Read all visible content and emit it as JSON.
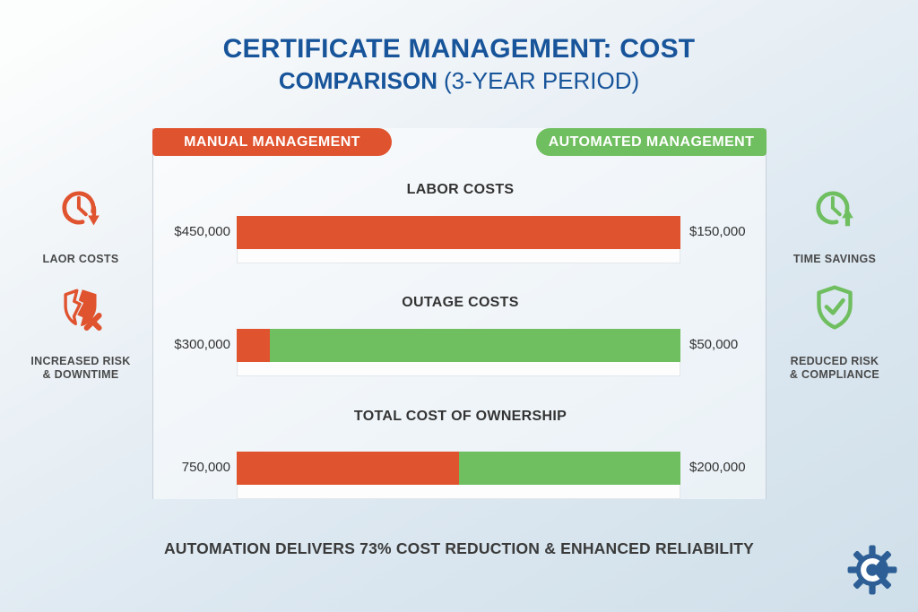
{
  "title": {
    "line1": "CERTIFICATE MANAGEMENT: COST",
    "line2_strong": "COMPARISON",
    "line2_light": "(3-YEAR PERIOD)"
  },
  "badges": {
    "manual": "MANUAL MANAGEMENT",
    "automated": "AUTOMATED MANAGEMENT"
  },
  "chart_data": {
    "type": "bar",
    "title": "Certificate Management: Cost Comparison (3-Year Period)",
    "categories": [
      "LABOR COSTS",
      "OUTAGE COSTS",
      "TOTAL COST OF OWNERSHIP"
    ],
    "series": [
      {
        "name": "Manual Management",
        "values": [
          450000,
          300000,
          750000
        ],
        "color": "#E0532F"
      },
      {
        "name": "Automated Management",
        "values": [
          150000,
          50000,
          200000
        ],
        "color": "#6FBE5F"
      }
    ],
    "value_labels_left": [
      "$450,000",
      "$300,000",
      "750,000"
    ],
    "value_labels_right": [
      "$150,000",
      "$50,000",
      "$200,000"
    ],
    "legend_position": "top",
    "grid": false,
    "annotation": "AUTOMATION DELIVERS 73% COST REDUCTION & ENHANCED RELIABILITY"
  },
  "rows": [
    {
      "title": "LABOR COSTS",
      "left_label": "$450,000",
      "right_label": "$150,000",
      "red_pct": 100,
      "green_pct": 0
    },
    {
      "title": "OUTAGE COSTS",
      "left_label": "$300,000",
      "right_label": "$50,000",
      "red_pct": 7.5,
      "green_pct": 92.5
    },
    {
      "title": "TOTAL COST OF OWNERSHIP",
      "left_label": "750,000",
      "right_label": "$200,000",
      "red_pct": 50,
      "green_pct": 50
    }
  ],
  "left_side": [
    {
      "icon": "clock-down-icon",
      "label_line1": "LAOR COSTS",
      "label_line2": ""
    },
    {
      "icon": "broken-shield-icon",
      "label_line1": "INCREASED RISK",
      "label_line2": "& DOWNTIME"
    }
  ],
  "right_side": [
    {
      "icon": "clock-up-icon",
      "label_line1": "TIME SAVINGS",
      "label_line2": ""
    },
    {
      "icon": "shield-check-icon",
      "label_line1": "REDUCED RISK",
      "label_line2": "& COMPLIANCE"
    }
  ],
  "footer": {
    "text": "AUTOMATION DELIVERS 73% COST REDUCTION & ENHANCED RELIABILITY"
  },
  "colors": {
    "manual_red": "#E0532F",
    "automated_green": "#6FBE5F",
    "title_blue": "#17549A",
    "logo_blue": "#2D5F96",
    "label_dark": "#333333",
    "footer_dark": "#3A3A3A"
  }
}
